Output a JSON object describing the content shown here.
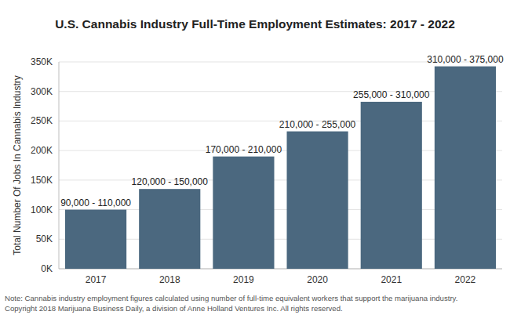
{
  "chart_data": {
    "type": "bar",
    "title": "U.S. Cannabis Industry Full-Time Employment Estimates: 2017 - 2022",
    "y_label": "Total Number Of Jobs In Cannabis Industry",
    "note": [
      "Note: Cannabis industry employment figures calculated using number of full-time equivalent workers that support the marijuana industry.",
      "Copyright 2018 Marijuana Business Daily, a division of Anne Holland Ventures Inc. All rights reserved."
    ],
    "categories": [
      "2017",
      "2018",
      "2019",
      "2020",
      "2021",
      "2022"
    ],
    "values": [
      100000,
      135000,
      190000,
      232500,
      282500,
      342500
    ],
    "value_labels": [
      "90,000 - 110,000",
      "120,000 - 150,000",
      "170,000 - 210,000",
      "210,000 - 255,000",
      "255,000 - 310,000",
      "310,000 - 375,000"
    ],
    "color": "#4b687f",
    "ylim": [
      0,
      350000
    ],
    "yticks": [
      {
        "value": 0,
        "label": "0K"
      },
      {
        "value": 50000,
        "label": "50K"
      },
      {
        "value": 100000,
        "label": "100K"
      },
      {
        "value": 150000,
        "label": "150K"
      },
      {
        "value": 200000,
        "label": "200K"
      },
      {
        "value": 250000,
        "label": "250K"
      },
      {
        "value": 300000,
        "label": "300K"
      },
      {
        "value": 350000,
        "label": "350K"
      }
    ],
    "grid": true,
    "data_labels": true
  }
}
